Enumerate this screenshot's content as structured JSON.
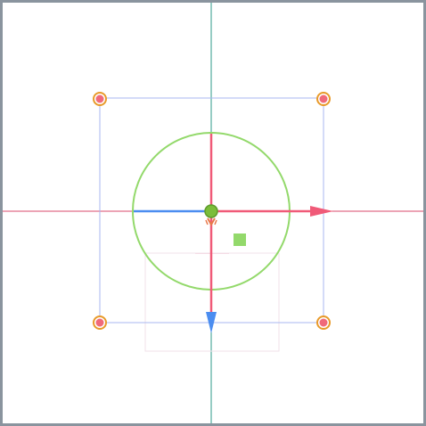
{
  "editor": {
    "viewport_label": "",
    "tool_mode": "transform",
    "colors": {
      "frame_border": "#8a949e",
      "axis_vertical": "#2e9a8a",
      "axis_horizontal": "#d9486b",
      "bounds": "#a9b7f0",
      "rotate_ring": "#93d96b",
      "gizmo_x": "#f05a78",
      "gizmo_y": "#4b8df0",
      "pivot": "#7bbd3a",
      "handle_fill": "#f06a7a",
      "handle_ring": "#e89a2a",
      "sprite_outline": "#f1e2ea"
    },
    "icons": {
      "corner_handle": "resize-handle-icon",
      "pivot": "pivot-point-icon",
      "x_arrow": "arrow-right-icon",
      "y_arrow": "arrow-down-icon",
      "plane_handle": "move-both-icon"
    }
  }
}
